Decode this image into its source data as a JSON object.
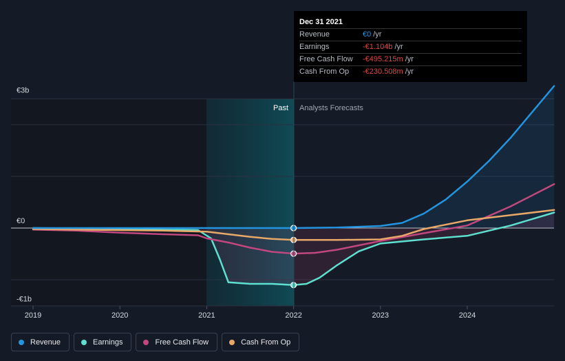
{
  "chart_data": {
    "type": "line",
    "title": "",
    "xlabel": "",
    "ylabel": "",
    "currency": "€",
    "y_tick_labels": [
      "€3b",
      "€0",
      "-€1b"
    ],
    "x_tick_labels": [
      "2019",
      "2020",
      "2021",
      "2022",
      "2023",
      "2024"
    ],
    "xlim": [
      2019.0,
      2025.0
    ],
    "ylim_billions": [
      -1.5,
      2.5
    ],
    "past_label": "Past",
    "forecast_label": "Analysts Forecasts",
    "past_region_start": 2021.0,
    "divider_x": 2022.0,
    "series": [
      {
        "name": "Revenue",
        "color": "#2394df",
        "x": [
          2019.0,
          2020.0,
          2021.0,
          2021.5,
          2022.0,
          2022.5,
          2023.0,
          2023.25,
          2023.5,
          2023.75,
          2024.0,
          2024.25,
          2024.5,
          2024.75,
          2025.0
        ],
        "values": [
          0.0,
          0.0,
          0.0,
          0.0,
          0.0,
          0.01,
          0.04,
          0.1,
          0.28,
          0.55,
          0.9,
          1.3,
          1.75,
          2.25,
          2.75
        ]
      },
      {
        "name": "Earnings",
        "color": "#5fe0cf",
        "x": [
          2019.0,
          2020.0,
          2020.9,
          2021.05,
          2021.15,
          2021.25,
          2021.5,
          2021.75,
          2022.0,
          2022.15,
          2022.3,
          2022.5,
          2022.75,
          2023.0,
          2023.5,
          2024.0,
          2024.5,
          2025.0
        ],
        "values": [
          0.0,
          -0.02,
          -0.04,
          -0.2,
          -0.6,
          -1.05,
          -1.08,
          -1.08,
          -1.104,
          -1.08,
          -0.96,
          -0.72,
          -0.45,
          -0.3,
          -0.22,
          -0.15,
          0.05,
          0.3
        ]
      },
      {
        "name": "Free Cash Flow",
        "color": "#c0477f",
        "x": [
          2019.0,
          2019.5,
          2020.0,
          2020.5,
          2020.9,
          2021.0,
          2021.25,
          2021.5,
          2021.75,
          2022.0,
          2022.25,
          2022.5,
          2023.0,
          2023.5,
          2024.0,
          2024.5,
          2025.0
        ],
        "values": [
          -0.03,
          -0.05,
          -0.09,
          -0.12,
          -0.14,
          -0.2,
          -0.28,
          -0.38,
          -0.46,
          -0.495,
          -0.48,
          -0.42,
          -0.25,
          -0.1,
          0.05,
          0.42,
          0.85
        ]
      },
      {
        "name": "Cash From Op",
        "color": "#e8a868",
        "x": [
          2019.0,
          2019.5,
          2020.0,
          2020.5,
          2021.0,
          2021.25,
          2021.5,
          2021.75,
          2022.0,
          2022.5,
          2023.0,
          2023.25,
          2023.5,
          2024.0,
          2024.5,
          2025.0
        ],
        "values": [
          -0.02,
          -0.03,
          -0.04,
          -0.05,
          -0.07,
          -0.12,
          -0.17,
          -0.21,
          -0.2305,
          -0.23,
          -0.22,
          -0.15,
          -0.02,
          0.15,
          0.25,
          0.35
        ]
      }
    ],
    "tooltip": {
      "date": "Dec 31 2021",
      "rows": [
        {
          "label": "Revenue",
          "value": "€0",
          "unit": "/yr"
        },
        {
          "label": "Earnings",
          "value": "-€1.104b",
          "unit": "/yr"
        },
        {
          "label": "Free Cash Flow",
          "value": "-€495.215m",
          "unit": "/yr"
        },
        {
          "label": "Cash From Op",
          "value": "-€230.508m",
          "unit": "/yr"
        }
      ]
    }
  },
  "legend": [
    {
      "label": "Revenue",
      "color": "#2394df"
    },
    {
      "label": "Earnings",
      "color": "#5fe0cf"
    },
    {
      "label": "Free Cash Flow",
      "color": "#c0477f"
    },
    {
      "label": "Cash From Op",
      "color": "#e8a868"
    }
  ]
}
